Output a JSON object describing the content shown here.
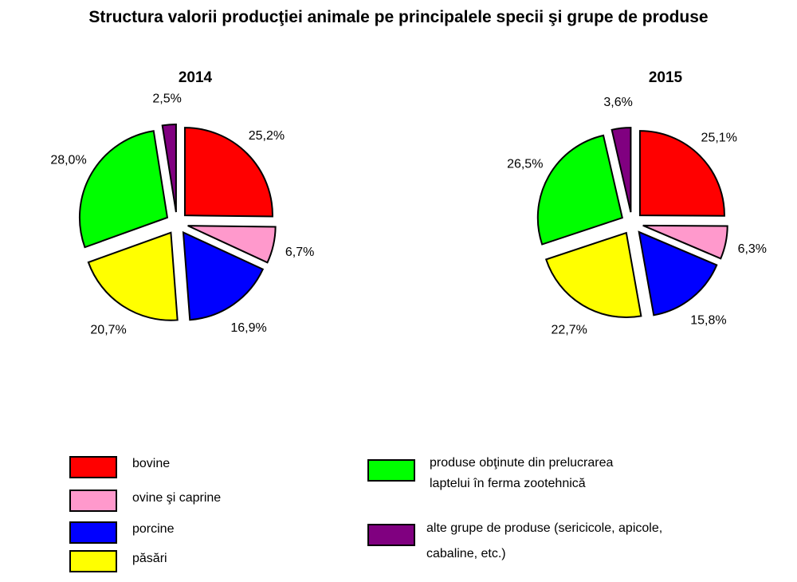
{
  "chart_data": {
    "title": "Structura valorii producţiei animale pe principalele specii şi grupe de produse",
    "type": "pie",
    "categories": [
      "bovine",
      "ovine şi caprine",
      "porcine",
      "păsări",
      "produse obţinute din prelucrarea laptelui în ferma zootehnică",
      "alte grupe de produse (sericicole, apicole, cabaline, etc.)"
    ],
    "colors": [
      "#ff0000",
      "#ff99cc",
      "#0000ff",
      "#ffff00",
      "#00ff00",
      "#800080"
    ],
    "charts": [
      {
        "title": "2014",
        "values": [
          25.2,
          6.7,
          16.9,
          20.7,
          28.0,
          2.5
        ],
        "labels": [
          "25,2%",
          "6,7%",
          "16,9%",
          "20,7%",
          "28,0%",
          "2,5%"
        ]
      },
      {
        "title": "2015",
        "values": [
          25.1,
          6.3,
          15.8,
          22.7,
          26.5,
          3.6
        ],
        "labels": [
          "25,1%",
          "6,3%",
          "15,8%",
          "22,7%",
          "26,5%",
          "3,6%"
        ]
      }
    ],
    "legend": {
      "placement": "bottom",
      "items": [
        "bovine",
        "ovine şi caprine",
        "porcine",
        "păsări"
      ],
      "items_right": [
        [
          "produse obţinute din prelucrarea",
          "laptelui în ferma zootehnică"
        ],
        [
          "alte grupe de produse (sericicole, apicole,",
          "cabaline, etc.)"
        ]
      ]
    }
  }
}
